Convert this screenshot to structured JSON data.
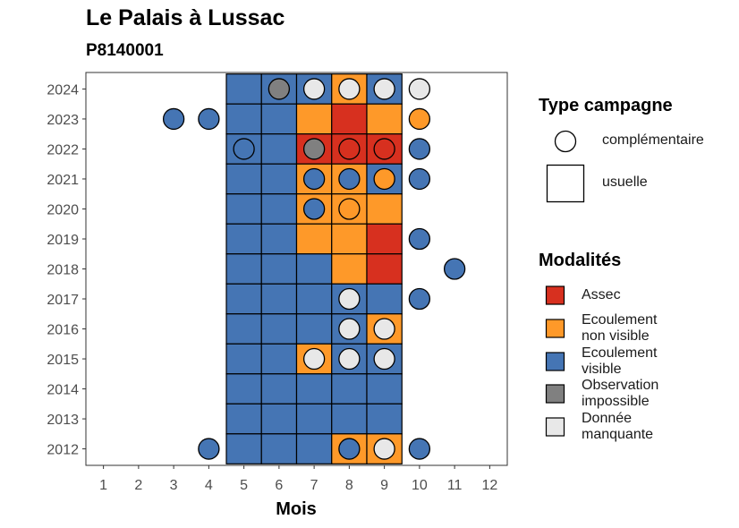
{
  "chart_data": {
    "type": "heatmap",
    "title": "Le Palais à Lussac",
    "subtitle": "P8140001",
    "xlabel": "Mois",
    "ylabel": "",
    "x_ticks": [
      "1",
      "2",
      "3",
      "4",
      "5",
      "6",
      "7",
      "8",
      "9",
      "10",
      "11",
      "12"
    ],
    "y_ticks": [
      "2012",
      "2013",
      "2014",
      "2015",
      "2016",
      "2017",
      "2018",
      "2019",
      "2020",
      "2021",
      "2022",
      "2023",
      "2024"
    ],
    "xlim": [
      0.5,
      12.5
    ],
    "ylim": [
      2011.45,
      2024.55
    ],
    "grid": false,
    "colors": {
      "assec": "#d7301f",
      "ecoulement_non_visible": "#fe9929",
      "ecoulement_visible": "#4575b4",
      "observation_impossible": "#808080",
      "donnee_manquante": "#e8e8e8"
    },
    "legend": {
      "type_title": "Type campagne",
      "type_items": [
        {
          "key": "complementaire",
          "label": "complémentaire",
          "shape": "circle"
        },
        {
          "key": "usuelle",
          "label": "usuelle",
          "shape": "square"
        }
      ],
      "mod_title": "Modalités",
      "mod_items": [
        {
          "key": "assec",
          "label": "Assec"
        },
        {
          "key": "ecoulement_non_visible",
          "label": "Ecoulement\nnon visible"
        },
        {
          "key": "ecoulement_visible",
          "label": "Ecoulement\nvisible"
        },
        {
          "key": "observation_impossible",
          "label": "Observation\nimpossible"
        },
        {
          "key": "donnee_manquante",
          "label": "Donnée\nmanquante"
        }
      ]
    },
    "usuelle": [
      {
        "year": 2024,
        "months": [
          "ecoulement_visible",
          "ecoulement_visible",
          "ecoulement_visible",
          "ecoulement_non_visible",
          "ecoulement_visible"
        ]
      },
      {
        "year": 2023,
        "months": [
          "ecoulement_visible",
          "ecoulement_visible",
          "ecoulement_non_visible",
          "assec",
          "ecoulement_non_visible"
        ]
      },
      {
        "year": 2022,
        "months": [
          "ecoulement_visible",
          "ecoulement_visible",
          "assec",
          "assec",
          "assec"
        ]
      },
      {
        "year": 2021,
        "months": [
          "ecoulement_visible",
          "ecoulement_visible",
          "ecoulement_non_visible",
          "ecoulement_non_visible",
          "ecoulement_visible"
        ]
      },
      {
        "year": 2020,
        "months": [
          "ecoulement_visible",
          "ecoulement_visible",
          "ecoulement_non_visible",
          "ecoulement_non_visible",
          "ecoulement_non_visible"
        ]
      },
      {
        "year": 2019,
        "months": [
          "ecoulement_visible",
          "ecoulement_visible",
          "ecoulement_non_visible",
          "ecoulement_non_visible",
          "assec"
        ]
      },
      {
        "year": 2018,
        "months": [
          "ecoulement_visible",
          "ecoulement_visible",
          "ecoulement_visible",
          "ecoulement_non_visible",
          "assec"
        ]
      },
      {
        "year": 2017,
        "months": [
          "ecoulement_visible",
          "ecoulement_visible",
          "ecoulement_visible",
          "ecoulement_visible",
          "ecoulement_visible"
        ]
      },
      {
        "year": 2016,
        "months": [
          "ecoulement_visible",
          "ecoulement_visible",
          "ecoulement_visible",
          "ecoulement_visible",
          "ecoulement_non_visible"
        ]
      },
      {
        "year": 2015,
        "months": [
          "ecoulement_visible",
          "ecoulement_visible",
          "ecoulement_non_visible",
          "ecoulement_visible",
          "ecoulement_visible"
        ]
      },
      {
        "year": 2014,
        "months": [
          "ecoulement_visible",
          "ecoulement_visible",
          "ecoulement_visible",
          "ecoulement_visible",
          "ecoulement_visible"
        ]
      },
      {
        "year": 2013,
        "months": [
          "ecoulement_visible",
          "ecoulement_visible",
          "ecoulement_visible",
          "ecoulement_visible",
          "ecoulement_visible"
        ]
      },
      {
        "year": 2012,
        "months": [
          "ecoulement_visible",
          "ecoulement_visible",
          "ecoulement_visible",
          "ecoulement_non_visible",
          "ecoulement_non_visible"
        ]
      }
    ],
    "usuelle_months": [
      5,
      6,
      7,
      8,
      9
    ],
    "complementaire": [
      {
        "year": 2024,
        "month": 6,
        "mod": "observation_impossible"
      },
      {
        "year": 2024,
        "month": 7,
        "mod": "donnee_manquante"
      },
      {
        "year": 2024,
        "month": 8,
        "mod": "donnee_manquante"
      },
      {
        "year": 2024,
        "month": 9,
        "mod": "donnee_manquante"
      },
      {
        "year": 2024,
        "month": 10,
        "mod": "donnee_manquante"
      },
      {
        "year": 2023,
        "month": 3,
        "mod": "ecoulement_visible"
      },
      {
        "year": 2023,
        "month": 4,
        "mod": "ecoulement_visible"
      },
      {
        "year": 2023,
        "month": 10,
        "mod": "ecoulement_non_visible"
      },
      {
        "year": 2022,
        "month": 5,
        "mod": "ecoulement_visible"
      },
      {
        "year": 2022,
        "month": 7,
        "mod": "observation_impossible"
      },
      {
        "year": 2022,
        "month": 8,
        "mod": "assec"
      },
      {
        "year": 2022,
        "month": 9,
        "mod": "assec"
      },
      {
        "year": 2022,
        "month": 10,
        "mod": "ecoulement_visible"
      },
      {
        "year": 2021,
        "month": 7,
        "mod": "ecoulement_visible"
      },
      {
        "year": 2021,
        "month": 8,
        "mod": "ecoulement_visible"
      },
      {
        "year": 2021,
        "month": 9,
        "mod": "ecoulement_non_visible"
      },
      {
        "year": 2021,
        "month": 10,
        "mod": "ecoulement_visible"
      },
      {
        "year": 2020,
        "month": 7,
        "mod": "ecoulement_visible"
      },
      {
        "year": 2020,
        "month": 8,
        "mod": "ecoulement_non_visible"
      },
      {
        "year": 2019,
        "month": 10,
        "mod": "ecoulement_visible"
      },
      {
        "year": 2018,
        "month": 11,
        "mod": "ecoulement_visible"
      },
      {
        "year": 2017,
        "month": 8,
        "mod": "donnee_manquante"
      },
      {
        "year": 2017,
        "month": 10,
        "mod": "ecoulement_visible"
      },
      {
        "year": 2016,
        "month": 8,
        "mod": "donnee_manquante"
      },
      {
        "year": 2016,
        "month": 9,
        "mod": "donnee_manquante"
      },
      {
        "year": 2015,
        "month": 7,
        "mod": "donnee_manquante"
      },
      {
        "year": 2015,
        "month": 8,
        "mod": "donnee_manquante"
      },
      {
        "year": 2015,
        "month": 9,
        "mod": "donnee_manquante"
      },
      {
        "year": 2012,
        "month": 4,
        "mod": "ecoulement_visible"
      },
      {
        "year": 2012,
        "month": 8,
        "mod": "ecoulement_visible"
      },
      {
        "year": 2012,
        "month": 9,
        "mod": "donnee_manquante"
      },
      {
        "year": 2012,
        "month": 10,
        "mod": "ecoulement_visible"
      }
    ]
  }
}
